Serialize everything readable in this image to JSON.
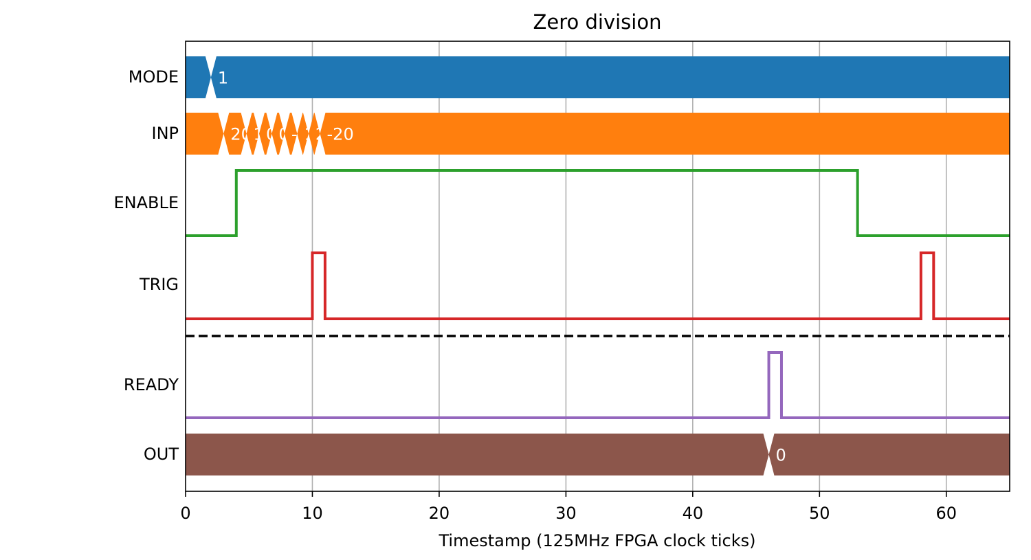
{
  "chart_data": {
    "type": "line",
    "title": "Zero division",
    "xlabel": "Timestamp (125MHz FPGA clock ticks)",
    "ylabel": "",
    "xlim": [
      0,
      65
    ],
    "xticks": [
      0,
      10,
      20,
      30,
      40,
      50,
      60
    ],
    "grid": "x",
    "series": [
      {
        "name": "MODE",
        "kind": "bus",
        "color": "#1f77b4",
        "segments": [
          {
            "start": 0,
            "end": 2,
            "label": ""
          },
          {
            "start": 2,
            "end": 65,
            "label": "1"
          }
        ]
      },
      {
        "name": "INP",
        "kind": "bus",
        "color": "#ff7f0e",
        "segments": [
          {
            "start": 0,
            "end": 3,
            "label": ""
          },
          {
            "start": 3,
            "end": 4.8,
            "label": "20"
          },
          {
            "start": 4.8,
            "end": 5.8,
            "label": "10"
          },
          {
            "start": 5.8,
            "end": 6.8,
            "label": "0"
          },
          {
            "start": 6.8,
            "end": 7.8,
            "label": "0"
          },
          {
            "start": 7.8,
            "end": 8.8,
            "label": "-5"
          },
          {
            "start": 8.8,
            "end": 9.7,
            "label": "1"
          },
          {
            "start": 9.7,
            "end": 10.6,
            "label": "2"
          },
          {
            "start": 10.6,
            "end": 65,
            "label": "-20"
          }
        ]
      },
      {
        "name": "ENABLE",
        "kind": "bit",
        "color": "#2ca02c",
        "x": [
          0,
          4,
          53,
          65
        ],
        "y": [
          0,
          1,
          0,
          0
        ]
      },
      {
        "name": "TRIG",
        "kind": "bit",
        "color": "#d62728",
        "x": [
          0,
          10,
          11,
          58,
          59,
          65
        ],
        "y": [
          0,
          1,
          0,
          1,
          0,
          0
        ]
      },
      {
        "name": "READY",
        "kind": "bit",
        "color": "#9467bd",
        "x": [
          0,
          46,
          47,
          65
        ],
        "y": [
          0,
          1,
          0,
          0
        ]
      },
      {
        "name": "OUT",
        "kind": "bus",
        "color": "#8c564b",
        "segments": [
          {
            "start": 0,
            "end": 46,
            "label": ""
          },
          {
            "start": 46,
            "end": 65,
            "label": "0"
          }
        ]
      }
    ],
    "separator_after": "TRIG"
  }
}
